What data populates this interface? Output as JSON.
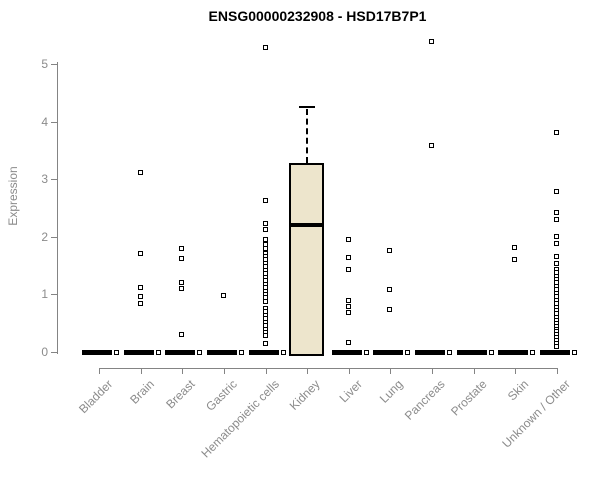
{
  "chart_data": {
    "type": "boxplot",
    "title": "ENSG00000232908 - HSD17B7P1",
    "ylabel": "Expression",
    "xlabel": "",
    "ylim": [
      0,
      5.4
    ],
    "yticks": [
      0,
      1,
      2,
      3,
      4,
      5
    ],
    "grid": false,
    "legend": null,
    "axis_color": "#848484",
    "label_color": "#8b8b8b",
    "box_fill_color": "#ede5cc",
    "marker": "open-square",
    "categories": [
      "Bladder",
      "Brain",
      "Breast",
      "Gastric",
      "Hematopoietic cells",
      "Kidney",
      "Liver",
      "Lung",
      "Pancreas",
      "Prostate",
      "Skin",
      "Unknown / Other"
    ],
    "series": [
      {
        "category": "Bladder",
        "box": {
          "low": 0,
          "q1": 0,
          "median": 0,
          "q3": 0,
          "high": 0
        },
        "outliers": []
      },
      {
        "category": "Brain",
        "box": {
          "low": 0,
          "q1": 0,
          "median": 0,
          "q3": 0,
          "high": 0
        },
        "outliers": [
          3.1,
          1.7,
          1.11,
          0.95,
          0.84
        ]
      },
      {
        "category": "Breast",
        "box": {
          "low": 0,
          "q1": 0,
          "median": 0,
          "q3": 0,
          "high": 0
        },
        "outliers": [
          1.78,
          1.62,
          1.2,
          1.1,
          0.3
        ]
      },
      {
        "category": "Gastric",
        "box": {
          "low": 0,
          "q1": 0,
          "median": 0,
          "q3": 0,
          "high": 0
        },
        "outliers": [
          0.98
        ]
      },
      {
        "category": "Hematopoietic cells",
        "box": {
          "low": 0,
          "q1": 0,
          "median": 0,
          "q3": 0,
          "high": 0
        },
        "outliers": [
          5.28,
          2.62,
          2.22,
          2.12,
          1.94,
          1.86,
          1.78,
          1.71,
          1.65,
          1.59,
          1.53,
          1.47,
          1.41,
          1.35,
          1.29,
          1.23,
          1.17,
          1.11,
          1.05,
          0.99,
          0.93,
          0.87,
          0.75,
          0.69,
          0.63,
          0.57,
          0.51,
          0.45,
          0.39,
          0.33,
          0.27,
          0.14
        ]
      },
      {
        "category": "Kidney",
        "box": {
          "low": 0,
          "q1": 0,
          "median": 2.2,
          "q3": 3.28,
          "high": 4.26
        },
        "outliers": []
      },
      {
        "category": "Liver",
        "box": {
          "low": 0,
          "q1": 0,
          "median": 0,
          "q3": 0,
          "high": 0
        },
        "outliers": [
          1.95,
          1.64,
          1.43,
          0.88,
          0.78,
          0.68,
          0.15
        ]
      },
      {
        "category": "Lung",
        "box": {
          "low": 0,
          "q1": 0,
          "median": 0,
          "q3": 0,
          "high": 0
        },
        "outliers": [
          1.76,
          1.08,
          0.73
        ]
      },
      {
        "category": "Pancreas",
        "box": {
          "low": 0,
          "q1": 0,
          "median": 0,
          "q3": 0,
          "high": 0
        },
        "outliers": [
          5.38,
          3.58
        ]
      },
      {
        "category": "Prostate",
        "box": {
          "low": 0,
          "q1": 0,
          "median": 0,
          "q3": 0,
          "high": 0
        },
        "outliers": []
      },
      {
        "category": "Skin",
        "box": {
          "low": 0,
          "q1": 0,
          "median": 0,
          "q3": 0,
          "high": 0
        },
        "outliers": [
          1.8,
          1.6
        ]
      },
      {
        "category": "Unknown / Other",
        "box": {
          "low": 0,
          "q1": 0,
          "median": 0,
          "q3": 0,
          "high": 0
        },
        "outliers": [
          3.8,
          2.77,
          2.42,
          2.3,
          2.0,
          1.88,
          1.65,
          1.53,
          1.43,
          1.37,
          1.31,
          1.25,
          1.19,
          1.13,
          1.07,
          1.01,
          0.95,
          0.89,
          0.83,
          0.77,
          0.71,
          0.66,
          0.59,
          0.54,
          0.49,
          0.44,
          0.39,
          0.34,
          0.29,
          0.24,
          0.19,
          0.14,
          0.09
        ]
      }
    ]
  }
}
